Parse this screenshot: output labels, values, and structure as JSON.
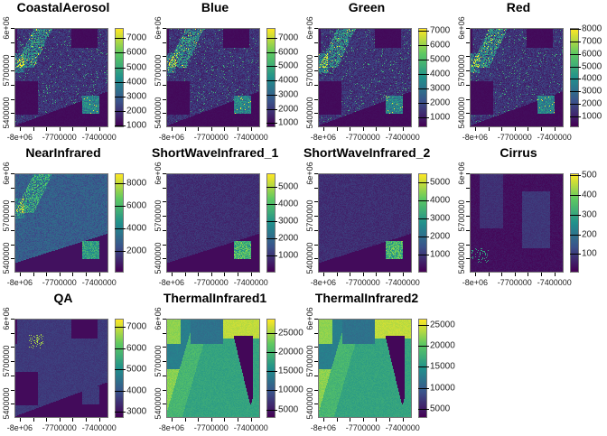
{
  "chart_data": [
    {
      "type": "heatmap",
      "title": "CoastalAerosol",
      "legend_range": [
        880,
        7700
      ],
      "legend_ticks": [
        1000,
        2000,
        3000,
        4000,
        5000,
        6000,
        7000
      ]
    },
    {
      "type": "heatmap",
      "title": "Blue",
      "legend_range": [
        700,
        7700
      ],
      "legend_ticks": [
        1000,
        2000,
        3000,
        4000,
        5000,
        6000,
        7000
      ]
    },
    {
      "type": "heatmap",
      "title": "Green",
      "legend_range": [
        300,
        7200
      ],
      "legend_ticks": [
        1000,
        2000,
        3000,
        4000,
        5000,
        6000,
        7000
      ]
    },
    {
      "type": "heatmap",
      "title": "Red",
      "legend_range": [
        100,
        8100
      ],
      "legend_ticks": [
        1000,
        2000,
        3000,
        4000,
        5000,
        6000,
        7000,
        8000
      ]
    },
    {
      "type": "heatmap",
      "title": "NearInfrared",
      "legend_range": [
        100,
        8900
      ],
      "legend_ticks": [
        2000,
        4000,
        6000,
        8000
      ]
    },
    {
      "type": "heatmap",
      "title": "ShortWaveInfrared_1",
      "legend_range": [
        10,
        5800
      ],
      "legend_ticks": [
        1000,
        2000,
        3000,
        4000,
        5000
      ]
    },
    {
      "type": "heatmap",
      "title": "ShortWaveInfrared_2",
      "legend_range": [
        10,
        5500
      ],
      "legend_ticks": [
        1000,
        2000,
        3000,
        4000,
        5000
      ]
    },
    {
      "type": "heatmap",
      "title": "Cirrus",
      "legend_range": [
        5,
        510
      ],
      "legend_ticks": [
        100,
        200,
        300,
        400,
        500
      ]
    },
    {
      "type": "heatmap",
      "title": "QA",
      "legend_range": [
        2700,
        7400
      ],
      "legend_ticks": [
        3000,
        4000,
        5000,
        6000,
        7000
      ]
    },
    {
      "type": "heatmap",
      "title": "ThermalInfrared1",
      "legend_range": [
        2800,
        28700
      ],
      "legend_ticks": [
        5000,
        10000,
        15000,
        20000,
        25000
      ]
    },
    {
      "type": "heatmap",
      "title": "ThermalInfrared2",
      "legend_range": [
        2800,
        26500
      ],
      "legend_ticks": [
        5000,
        10000,
        15000,
        20000,
        25000
      ]
    }
  ],
  "axes": {
    "xlim": [
      -8040000,
      -7330000
    ],
    "ylim": [
      5300000,
      6000000
    ],
    "x_ticks": [
      -8000000,
      -7900000,
      -7800000,
      -7700000,
      -7600000,
      -7500000,
      -7400000
    ],
    "x_labels": [
      {
        "value": -8000000,
        "text": "-8e+06"
      },
      {
        "value": -7700000,
        "text": "-7700000"
      },
      {
        "value": -7400000,
        "text": "-7400000"
      }
    ],
    "y_ticks": [
      6000000,
      5900000,
      5800000,
      5700000,
      5600000,
      5500000,
      5400000
    ],
    "y_labels": [
      {
        "value": 6000000,
        "text": "6e+06"
      },
      {
        "value": 5700000,
        "text": "5700000"
      },
      {
        "value": 5400000,
        "text": "5400000"
      }
    ]
  },
  "colormap": [
    "#440154",
    "#3b528b",
    "#21918c",
    "#5ec962",
    "#fde725"
  ]
}
